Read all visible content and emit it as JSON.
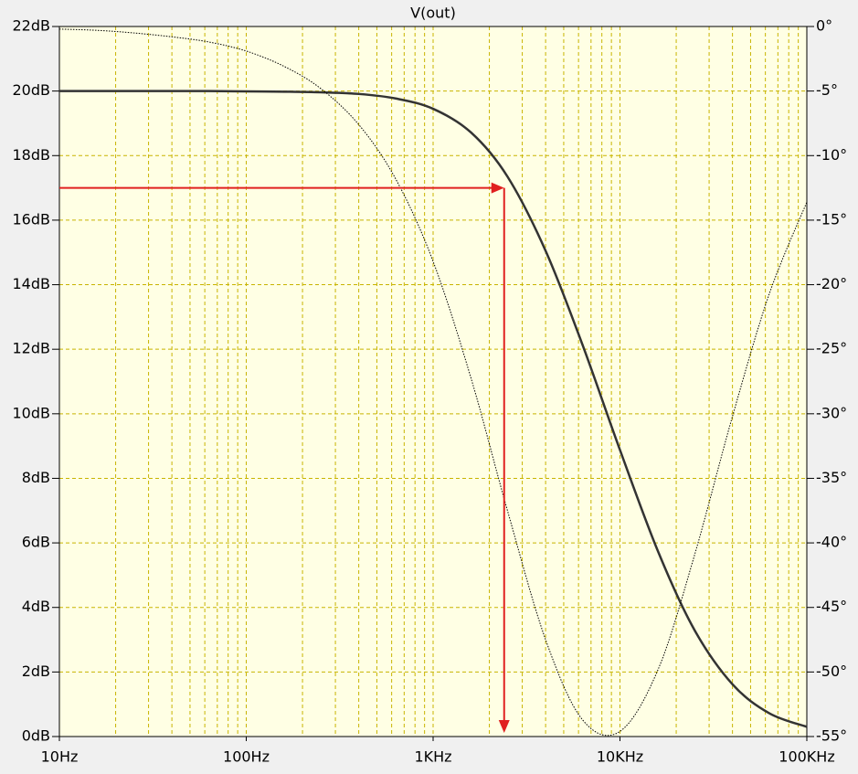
{
  "chart_data": {
    "type": "line",
    "title": "V(out)",
    "x": [
      10,
      16,
      25,
      40,
      63,
      100,
      160,
      250,
      400,
      630,
      1000,
      1600,
      2500,
      4000,
      6300,
      10000,
      16000,
      25000,
      40000,
      63000,
      100000
    ],
    "series": [
      {
        "color": "#333333",
        "style": "solid",
        "axis": "y",
        "values": [
          20.0,
          20.0,
          20.0,
          20.0,
          20.0,
          19.99,
          19.98,
          19.96,
          19.91,
          19.77,
          19.45,
          18.71,
          17.35,
          15.05,
          12.14,
          8.88,
          5.73,
          3.31,
          1.62,
          0.72,
          0.3
        ]
      },
      {
        "color": "#000000",
        "style": "dotted",
        "axis": "y2",
        "values": [
          -0.2,
          -0.3,
          -0.5,
          -0.8,
          -1.2,
          -1.9,
          -3.1,
          -4.8,
          -7.6,
          -11.8,
          -18.2,
          -27.3,
          -37.5,
          -47.5,
          -53.7,
          -54.6,
          -49.8,
          -41.0,
          -30.2,
          -20.7,
          -13.6
        ]
      }
    ],
    "xscale": "log",
    "xlim": [
      10,
      100000
    ],
    "xticks": [
      {
        "value": 10,
        "label": "10Hz"
      },
      {
        "value": 100,
        "label": "100Hz"
      },
      {
        "value": 1000,
        "label": "1KHz"
      },
      {
        "value": 10000,
        "label": "10KHz"
      },
      {
        "value": 100000,
        "label": "100KHz"
      }
    ],
    "ylim": [
      0,
      22
    ],
    "yticks": [
      {
        "value": 0,
        "label": "0dB"
      },
      {
        "value": 2,
        "label": "2dB"
      },
      {
        "value": 4,
        "label": "4dB"
      },
      {
        "value": 6,
        "label": "6dB"
      },
      {
        "value": 8,
        "label": "8dB"
      },
      {
        "value": 10,
        "label": "10dB"
      },
      {
        "value": 12,
        "label": "12dB"
      },
      {
        "value": 14,
        "label": "14dB"
      },
      {
        "value": 16,
        "label": "16dB"
      },
      {
        "value": 18,
        "label": "18dB"
      },
      {
        "value": 20,
        "label": "20dB"
      },
      {
        "value": 22,
        "label": "22dB"
      }
    ],
    "y2lim": [
      -55,
      0
    ],
    "y2ticks": [
      {
        "value": 0,
        "label": "0°"
      },
      {
        "value": -5,
        "label": "-5°"
      },
      {
        "value": -10,
        "label": "-10°"
      },
      {
        "value": -15,
        "label": "-15°"
      },
      {
        "value": -20,
        "label": "-20°"
      },
      {
        "value": -25,
        "label": "-25°"
      },
      {
        "value": -30,
        "label": "-30°"
      },
      {
        "value": -35,
        "label": "-35°"
      },
      {
        "value": -40,
        "label": "-40°"
      },
      {
        "value": -45,
        "label": "-45°"
      },
      {
        "value": -50,
        "label": "-50°"
      },
      {
        "value": -55,
        "label": "-55°"
      }
    ],
    "grid": true,
    "grid_color": "#c8b400",
    "background": "#ffffe4",
    "marker": {
      "x": 2400,
      "y": 17,
      "color": "#e02020"
    }
  }
}
